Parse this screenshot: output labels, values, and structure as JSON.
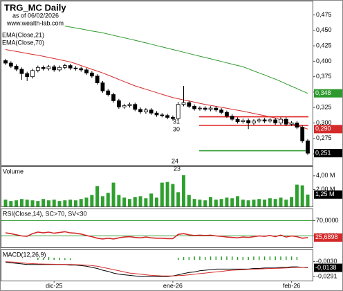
{
  "chart_data": [
    {
      "type": "candlestick",
      "title": "TRG_MC Daily",
      "subtitle": "as of 06/02/2026",
      "source": "www.wealth-lab.com",
      "up_color": "#ffffff",
      "down_color": "#000000",
      "open": [
        0.401,
        0.397,
        0.392,
        0.387,
        0.38,
        0.375,
        0.385,
        0.39,
        0.388,
        0.391,
        0.386,
        0.39,
        0.393,
        0.389,
        0.388,
        0.386,
        0.381,
        0.376,
        0.365,
        0.352,
        0.346,
        0.336,
        0.326,
        0.328,
        0.33,
        0.322,
        0.318,
        0.321,
        0.316,
        0.313,
        0.312,
        0.309,
        0.307,
        0.33,
        0.333,
        0.327,
        0.323,
        0.324,
        0.322,
        0.324,
        0.321,
        0.317,
        0.311,
        0.306,
        0.302,
        0.304,
        0.3,
        0.303,
        0.305,
        0.303,
        0.305,
        0.3,
        0.306,
        0.298,
        0.3,
        0.293,
        0.271
      ],
      "high": [
        0.404,
        0.4,
        0.395,
        0.39,
        0.383,
        0.388,
        0.393,
        0.393,
        0.394,
        0.394,
        0.393,
        0.396,
        0.396,
        0.392,
        0.391,
        0.389,
        0.384,
        0.379,
        0.368,
        0.355,
        0.349,
        0.339,
        0.331,
        0.333,
        0.333,
        0.325,
        0.324,
        0.324,
        0.319,
        0.316,
        0.315,
        0.312,
        0.334,
        0.36,
        0.336,
        0.33,
        0.327,
        0.327,
        0.327,
        0.327,
        0.324,
        0.32,
        0.314,
        0.309,
        0.307,
        0.307,
        0.306,
        0.308,
        0.308,
        0.308,
        0.308,
        0.309,
        0.309,
        0.303,
        0.303,
        0.296,
        0.274
      ],
      "low": [
        0.394,
        0.389,
        0.384,
        0.37,
        0.368,
        0.372,
        0.382,
        0.385,
        0.385,
        0.383,
        0.383,
        0.387,
        0.386,
        0.385,
        0.383,
        0.378,
        0.373,
        0.362,
        0.349,
        0.343,
        0.333,
        0.323,
        0.323,
        0.325,
        0.319,
        0.315,
        0.315,
        0.313,
        0.31,
        0.309,
        0.306,
        0.304,
        0.304,
        0.327,
        0.324,
        0.32,
        0.32,
        0.319,
        0.319,
        0.318,
        0.314,
        0.308,
        0.303,
        0.299,
        0.299,
        0.29,
        0.297,
        0.3,
        0.3,
        0.3,
        0.297,
        0.297,
        0.295,
        0.295,
        0.29,
        0.268,
        0.248
      ],
      "close": [
        0.397,
        0.392,
        0.387,
        0.38,
        0.375,
        0.385,
        0.39,
        0.388,
        0.391,
        0.386,
        0.39,
        0.393,
        0.389,
        0.388,
        0.386,
        0.381,
        0.376,
        0.365,
        0.352,
        0.346,
        0.336,
        0.326,
        0.328,
        0.33,
        0.322,
        0.318,
        0.321,
        0.316,
        0.313,
        0.312,
        0.309,
        0.307,
        0.33,
        0.333,
        0.327,
        0.323,
        0.324,
        0.322,
        0.324,
        0.321,
        0.317,
        0.311,
        0.306,
        0.302,
        0.304,
        0.3,
        0.303,
        0.305,
        0.303,
        0.305,
        0.3,
        0.306,
        0.298,
        0.3,
        0.293,
        0.271,
        0.251
      ],
      "close_label": "0,251",
      "series": [
        {
          "name": "EMA(Close,21)",
          "color": "#d42a2a",
          "last_value_label": "0,290",
          "values": [
            0.419,
            0.4174,
            0.4159,
            0.4143,
            0.4127,
            0.4111,
            0.4096,
            0.408,
            0.4062,
            0.4044,
            0.4026,
            0.4008,
            0.399,
            0.396,
            0.393,
            0.39,
            0.387,
            0.384,
            0.381,
            0.3775,
            0.374,
            0.3705,
            0.367,
            0.3635,
            0.36,
            0.3573,
            0.3546,
            0.3519,
            0.3491,
            0.3464,
            0.3437,
            0.341,
            0.3392,
            0.3373,
            0.3355,
            0.3337,
            0.3318,
            0.33,
            0.3284,
            0.3269,
            0.3253,
            0.3237,
            0.3221,
            0.3206,
            0.319,
            0.3172,
            0.3153,
            0.3135,
            0.3117,
            0.3098,
            0.308,
            0.305,
            0.302,
            0.299,
            0.296,
            0.293,
            0.29
          ]
        },
        {
          "name": "EMA(Close,70)",
          "color": "#2e9a2e",
          "last_value_label": "0,348",
          "values": [
            null,
            null,
            null,
            null,
            null,
            null,
            null,
            null,
            null,
            null,
            null,
            0.457,
            0.4554,
            0.4539,
            0.4523,
            0.4507,
            0.4491,
            0.4476,
            0.446,
            0.444,
            0.442,
            0.44,
            0.438,
            0.436,
            0.434,
            0.4319,
            0.4297,
            0.4276,
            0.4254,
            0.4233,
            0.4211,
            0.419,
            0.4168,
            0.4147,
            0.4125,
            0.4103,
            0.4082,
            0.406,
            0.4039,
            0.4017,
            0.3996,
            0.3974,
            0.3953,
            0.3931,
            0.391,
            0.3877,
            0.3843,
            0.381,
            0.3777,
            0.3743,
            0.371,
            0.3672,
            0.3633,
            0.3595,
            0.3557,
            0.3518,
            0.348
          ]
        }
      ],
      "levels": [
        {
          "value": 0.31,
          "color": "#e02020"
        },
        {
          "value": 0.296,
          "color": "#e02020"
        },
        {
          "value": 0.255,
          "color": "#2e9a2e"
        }
      ],
      "annotations": [
        "31",
        "30",
        "24",
        "23"
      ],
      "ylim": [
        0.232,
        0.497
      ],
      "yticks": [
        {
          "value": 0.25,
          "label": "0,250"
        },
        {
          "value": 0.275,
          "label": "0,275"
        },
        {
          "value": 0.3,
          "label": "0,300"
        },
        {
          "value": 0.325,
          "label": "0,325"
        },
        {
          "value": 0.35,
          "label": "0,350"
        },
        {
          "value": 0.375,
          "label": "0,375"
        },
        {
          "value": 0.4,
          "label": "0,400"
        },
        {
          "value": 0.425,
          "label": "0,425"
        },
        {
          "value": 0.45,
          "label": "0,450"
        },
        {
          "value": 0.475,
          "label": "0,475"
        }
      ]
    },
    {
      "type": "bar",
      "title": "Volume",
      "color": "#2fa02f",
      "last_value_label": "1,25 M",
      "values": [
        0.5,
        0.3,
        0.4,
        0.6,
        0.5,
        0.4,
        0.3,
        0.6,
        0.4,
        0.5,
        0.3,
        0.4,
        0.5,
        0.4,
        0.6,
        0.8,
        1.2,
        2.5,
        1.0,
        1.5,
        3.0,
        1.2,
        0.8,
        0.6,
        0.9,
        1.0,
        0.7,
        1.4,
        0.8,
        3.0,
        3.1,
        2.8,
        1.6,
        4.1,
        1.2,
        0.6,
        0.5,
        0.4,
        0.9,
        0.5,
        0.6,
        0.8,
        0.7,
        1.0,
        0.5,
        0.4,
        0.5,
        0.6,
        0.5,
        0.7,
        0.6,
        0.8,
        0.5,
        0.9,
        2.7,
        2.6,
        1.25
      ],
      "ylim": [
        -0.5,
        5.3
      ],
      "yticks": [
        {
          "value": 2,
          "label": "2,00 M"
        },
        {
          "value": 4,
          "label": "4,00 M"
        }
      ]
    },
    {
      "type": "line",
      "title": "RSI(Close,14), SC>70, SV<30",
      "color": "#d42a2a",
      "level_color": "#2e9a2e",
      "last_value_label": "25,6898",
      "values": [
        38,
        36,
        33,
        30,
        29,
        36,
        40,
        38,
        40,
        37,
        39,
        41,
        38,
        37,
        35,
        31,
        28,
        24,
        22,
        24,
        22,
        25,
        27,
        28,
        26,
        25,
        27,
        25,
        24,
        24,
        23,
        23,
        34,
        36,
        33,
        31,
        32,
        31,
        32,
        30,
        29,
        27,
        26,
        25,
        27,
        26,
        28,
        30,
        29,
        31,
        28,
        32,
        27,
        30,
        28,
        24,
        25.6898
      ],
      "ylim": [
        0,
        100
      ],
      "yticks": [
        {
          "value": 30,
          "label": "30,0000"
        },
        {
          "value": 70,
          "label": "70,0000"
        }
      ]
    },
    {
      "type": "line",
      "title": "MACD(12,26,9)",
      "last_value_label": "-0,0138",
      "categories": [
        null,
        null,
        null,
        null,
        null,
        null,
        null,
        null,
        null,
        "dic-25",
        null,
        null,
        null,
        null,
        null,
        null,
        null,
        null,
        null,
        null,
        null,
        null,
        null,
        null,
        null,
        null,
        null,
        null,
        null,
        null,
        null,
        "ene-26",
        null,
        null,
        null,
        null,
        null,
        null,
        null,
        null,
        null,
        null,
        null,
        null,
        null,
        null,
        null,
        null,
        null,
        null,
        null,
        null,
        null,
        "feb-26",
        null,
        null,
        null
      ],
      "series": [
        {
          "color": "#000000",
          "values": [
            -0.004,
            -0.005,
            -0.006,
            -0.007,
            -0.008,
            -0.008,
            -0.008,
            -0.008,
            -0.008,
            -0.008,
            -0.008,
            -0.008,
            -0.009,
            -0.009,
            -0.01,
            -0.011,
            -0.013,
            -0.015,
            -0.018,
            -0.02,
            -0.023,
            -0.025,
            -0.026,
            -0.027,
            -0.028,
            -0.029,
            -0.029,
            -0.029,
            -0.029,
            -0.029,
            -0.029,
            -0.028,
            -0.026,
            -0.024,
            -0.022,
            -0.021,
            -0.019,
            -0.018,
            -0.017,
            -0.016,
            -0.016,
            -0.016,
            -0.016,
            -0.016,
            -0.016,
            -0.016,
            -0.015,
            -0.015,
            -0.014,
            -0.014,
            -0.014,
            -0.013,
            -0.013,
            -0.012,
            -0.012,
            -0.013,
            -0.0138
          ]
        },
        {
          "color": "#d42a2a",
          "values": [
            -0.003,
            -0.0035,
            -0.004,
            -0.005,
            -0.006,
            -0.0065,
            -0.007,
            -0.0072,
            -0.0074,
            -0.0076,
            -0.0077,
            -0.0078,
            -0.008,
            -0.0083,
            -0.0086,
            -0.009,
            -0.01,
            -0.011,
            -0.013,
            -0.015,
            -0.017,
            -0.019,
            -0.021,
            -0.023,
            -0.024,
            -0.025,
            -0.026,
            -0.027,
            -0.0275,
            -0.028,
            -0.028,
            -0.028,
            -0.0275,
            -0.027,
            -0.026,
            -0.025,
            -0.024,
            -0.023,
            -0.022,
            -0.021,
            -0.02,
            -0.019,
            -0.018,
            -0.0175,
            -0.017,
            -0.0165,
            -0.016,
            -0.0158,
            -0.0155,
            -0.015,
            -0.0148,
            -0.0145,
            -0.014,
            -0.0135,
            -0.013,
            -0.013,
            -0.0132
          ]
        }
      ],
      "histogram": {
        "color": "#2e9a2e",
        "values": [
          0,
          0,
          0,
          0,
          0,
          0,
          0.004,
          0.004,
          0.005,
          0.004,
          0.004,
          0.003,
          0.003,
          0,
          0,
          0,
          0,
          0,
          0,
          0,
          0,
          0,
          0,
          0,
          0,
          0,
          0,
          0,
          0,
          0,
          0,
          0,
          0.004,
          0.005,
          0.005,
          0.006,
          0.006,
          0.005,
          0.006,
          0.006,
          0.006,
          0.006,
          0.006,
          0.005,
          0.005,
          0.005,
          0.006,
          0.006,
          0.006,
          0.006,
          0.006,
          0.006,
          0.006,
          0.006,
          0.005,
          0,
          0
        ]
      },
      "ylim": [
        -0.0362,
        0.0172
      ],
      "yticks": [
        {
          "value": -0.0291,
          "label": "-0,0291"
        },
        {
          "value": -0.003,
          "label": "-0,0030"
        }
      ]
    }
  ]
}
